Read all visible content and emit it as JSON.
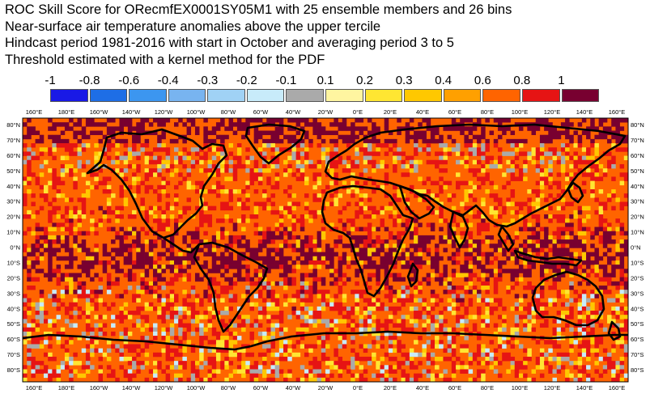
{
  "title_lines": [
    "ROC Skill Score for ORecmfEX0001SY05M1 with 25 ensemble members and 26 bins",
    "Near-surface air temperature anomalies above the upper tercile",
    "Hindcast period 1981-2016 with start in October and averaging period  3 to  5",
    "Threshold estimated with a kernel method for the PDF"
  ],
  "legend": {
    "labels": [
      "-1",
      "-0.8",
      "-0.6",
      "-0.4",
      "-0.3",
      "-0.2",
      "-0.1",
      "0.1",
      "0.2",
      "0.3",
      "0.4",
      "0.6",
      "0.8",
      "1"
    ],
    "colors": [
      "#1919e6",
      "#1e6ee6",
      "#3c96f0",
      "#78b4f0",
      "#a0d2f5",
      "#c8ebfa",
      "#aaaaaa",
      "#fff5a0",
      "#ffe632",
      "#ffc800",
      "#ffa000",
      "#ff6400",
      "#e61414",
      "#780030"
    ]
  },
  "map": {
    "lon_labels": [
      "160°E",
      "180°E",
      "160°W",
      "140°W",
      "120°W",
      "100°W",
      "80°W",
      "60°W",
      "40°W",
      "20°W",
      "0°E",
      "20°E",
      "40°E",
      "60°E",
      "80°E",
      "100°E",
      "120°E",
      "140°E",
      "160°E"
    ],
    "lat_labels": [
      "80°N",
      "70°N",
      "60°N",
      "50°N",
      "40°N",
      "30°N",
      "20°N",
      "10°N",
      "0°N",
      "10°S",
      "20°S",
      "30°S",
      "40°S",
      "50°S",
      "60°S",
      "70°S",
      "80°S"
    ],
    "colors": {
      "land_outline": "#000000",
      "dominant_fill": "#ff6400",
      "high_skill": "#e61414",
      "very_high_skill": "#780030",
      "no_skill": "#aaaaaa"
    }
  }
}
